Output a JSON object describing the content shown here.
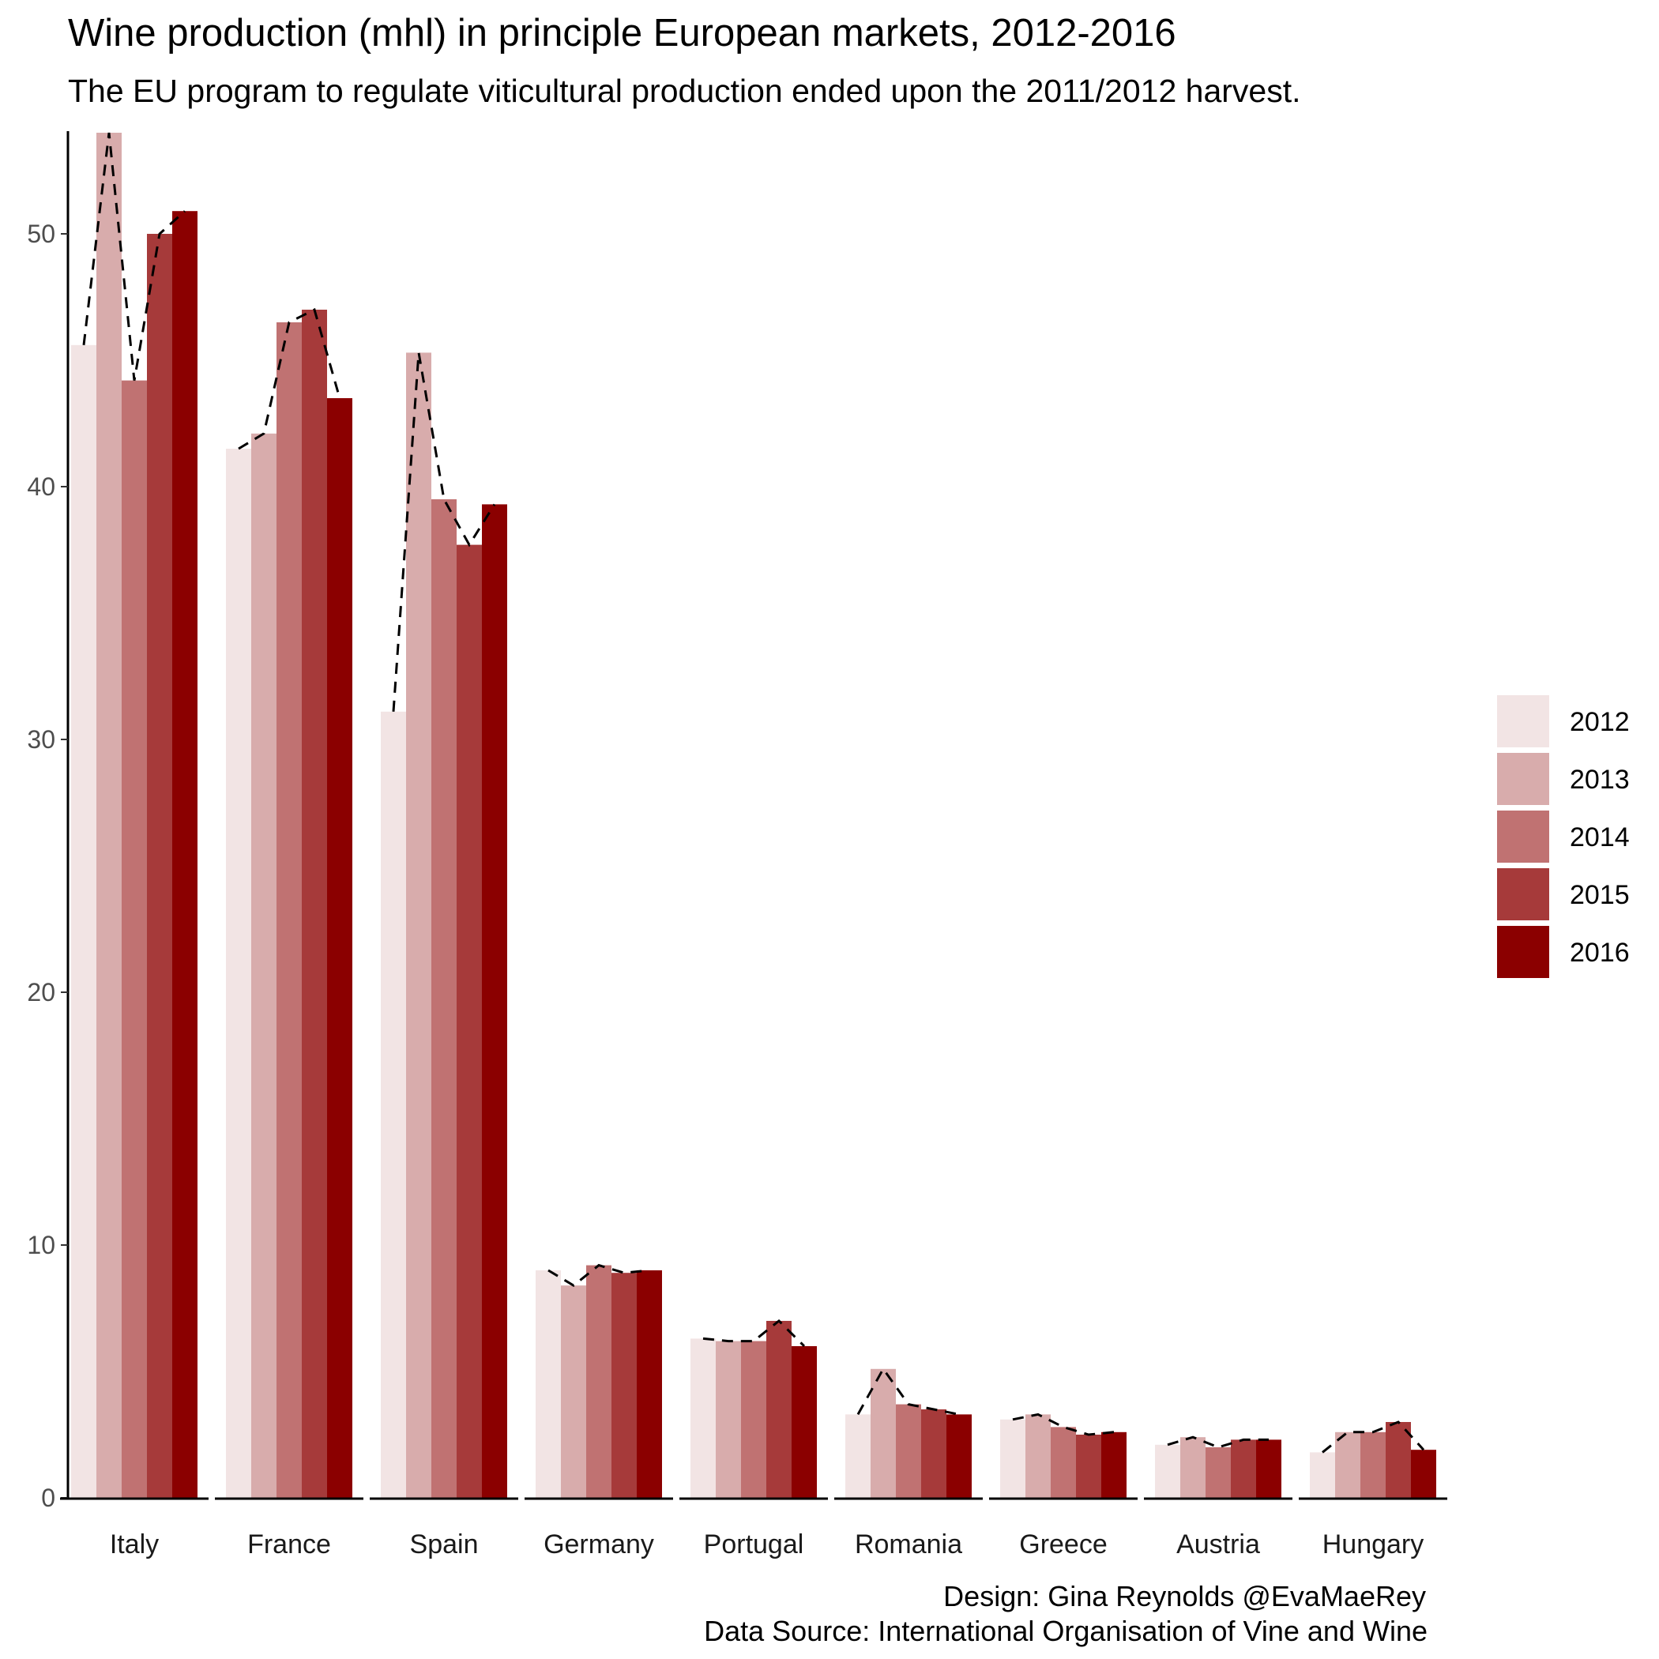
{
  "chart_data": {
    "type": "bar",
    "title": "Wine production (mhl) in principle European markets, 2012-2016",
    "subtitle": "The EU program to regulate viticultural production ended upon the 2011/2012 harvest.",
    "caption_design": "Design: Gina Reynolds @EvaMaeRey",
    "caption_source": "Data Source: International Organisation of Vine and Wine",
    "xlabel": "",
    "ylabel": "",
    "ylim": [
      0,
      54
    ],
    "yticks": [
      0,
      10,
      20,
      30,
      40,
      50
    ],
    "categories": [
      "Italy",
      "France",
      "Spain",
      "Germany",
      "Portugal",
      "Romania",
      "Greece",
      "Austria",
      "Hungary"
    ],
    "series": [
      {
        "name": "2012",
        "color": "#f2e4e4",
        "values": [
          45.6,
          41.5,
          31.1,
          9.0,
          6.3,
          3.3,
          3.1,
          2.1,
          1.8
        ]
      },
      {
        "name": "2013",
        "color": "#d8acac",
        "values": [
          54.0,
          42.1,
          45.3,
          8.4,
          6.2,
          5.1,
          3.3,
          2.4,
          2.6
        ]
      },
      {
        "name": "2014",
        "color": "#c07272",
        "values": [
          44.2,
          46.5,
          39.5,
          9.2,
          6.2,
          3.7,
          2.8,
          2.0,
          2.6
        ]
      },
      {
        "name": "2015",
        "color": "#a63a3a",
        "values": [
          50.0,
          47.0,
          37.7,
          8.9,
          7.0,
          3.5,
          2.5,
          2.3,
          3.0
        ]
      },
      {
        "name": "2016",
        "color": "#8b0000",
        "values": [
          50.9,
          43.5,
          39.3,
          9.0,
          6.0,
          3.3,
          2.6,
          2.3,
          1.9
        ]
      }
    ],
    "legend": {
      "position": "right"
    },
    "grid": false,
    "trend_line": {
      "style": "dashed",
      "color": "#000000"
    }
  }
}
